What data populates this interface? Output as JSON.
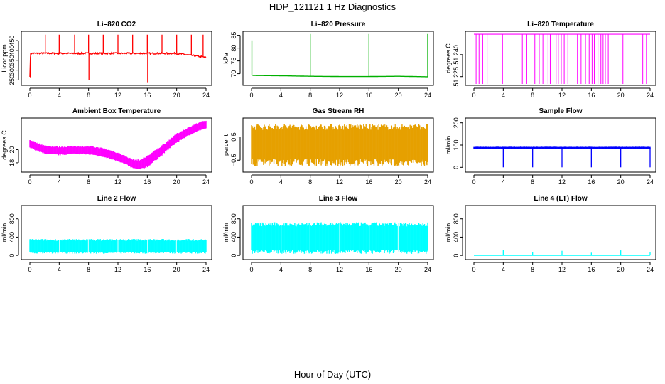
{
  "figure": {
    "title": "HDP_121121  1 Hz Diagnostics",
    "xlabel": "Hour of Day (UTC)"
  },
  "chart_data": [
    {
      "type": "line",
      "title": "Li–820 CO2",
      "ylabel": "Licor ppm",
      "color": "#ff0000",
      "xlim": [
        0,
        24
      ],
      "ylim": [
        230,
        490
      ],
      "yticks": [
        250,
        300,
        350,
        400,
        450
      ],
      "xticks": [
        0,
        4,
        8,
        12,
        16,
        20,
        24
      ],
      "xtick_labels": [
        "0",
        "4",
        "8",
        "12",
        "16",
        "20",
        "24"
      ],
      "baseline": 385,
      "noise": 8,
      "series": {
        "x": [
          0,
          0.1,
          2,
          4,
          8,
          12,
          16,
          20,
          24
        ],
        "y": [
          270,
          385,
          385,
          385,
          385,
          385,
          385,
          385,
          365
        ]
      },
      "spikes": [
        {
          "x": 0.1,
          "y": 260
        },
        {
          "x": 2.1,
          "y": 480
        },
        {
          "x": 4.0,
          "y": 480
        },
        {
          "x": 6.1,
          "y": 480
        },
        {
          "x": 8.0,
          "y": 480
        },
        {
          "x": 8.05,
          "y": 250
        },
        {
          "x": 10.0,
          "y": 480
        },
        {
          "x": 12.0,
          "y": 480
        },
        {
          "x": 14.0,
          "y": 480
        },
        {
          "x": 16.0,
          "y": 480
        },
        {
          "x": 16.05,
          "y": 235
        },
        {
          "x": 18.0,
          "y": 480
        },
        {
          "x": 20.0,
          "y": 480
        },
        {
          "x": 22.0,
          "y": 480
        },
        {
          "x": 23.6,
          "y": 480
        }
      ]
    },
    {
      "type": "line",
      "title": "Li–820 Pressure",
      "ylabel": "kPa",
      "color": "#00b000",
      "xlim": [
        0,
        24
      ],
      "ylim": [
        66,
        86
      ],
      "yticks": [
        70,
        75,
        80,
        85
      ],
      "xticks": [
        0,
        4,
        8,
        12,
        16,
        20,
        24
      ],
      "xtick_labels": [
        "0",
        "4",
        "8",
        "12",
        "16",
        "20",
        "24"
      ],
      "series": {
        "x": [
          0,
          0.3,
          4,
          8,
          12,
          16,
          20,
          24
        ],
        "y": [
          69.5,
          69.3,
          69.2,
          69.0,
          68.9,
          68.9,
          69.0,
          68.8
        ]
      },
      "spikes": [
        {
          "x": 0.05,
          "y": 83
        },
        {
          "x": 8.0,
          "y": 85.5
        },
        {
          "x": 16.0,
          "y": 85.5
        },
        {
          "x": 24.0,
          "y": 85.5
        }
      ]
    },
    {
      "type": "bar",
      "title": "Li–820 Temperature",
      "ylabel": "degrees C",
      "color": "#ff00ff",
      "xlim": [
        0,
        24
      ],
      "ylim": [
        51.22,
        51.255
      ],
      "yticks": [
        51.225,
        51.24
      ],
      "ytick_labels": [
        "51.225",
        "51.240"
      ],
      "xticks": [
        0,
        4,
        8,
        12,
        16,
        20,
        24
      ],
      "xtick_labels": [
        "0",
        "4",
        "8",
        "12",
        "16",
        "20",
        "24"
      ],
      "level_high": 51.254,
      "level_low": 51.22,
      "drops": [
        0.3,
        0.7,
        1.2,
        1.8,
        3.9,
        6.6,
        7.2,
        8.3,
        8.9,
        9.4,
        10.1,
        10.4,
        11.2,
        11.5,
        11.9,
        12.3,
        12.8,
        13.5,
        14.1,
        14.6,
        15.2,
        15.7,
        16.1,
        16.4,
        16.9,
        17.3,
        17.6,
        17.9,
        18.3,
        20.3,
        23.0,
        23.5
      ]
    },
    {
      "type": "area",
      "title": "Ambient Box Temperature",
      "ylabel": "degrees C",
      "color": "#ff00ff",
      "xlim": [
        0,
        24
      ],
      "ylim": [
        16.8,
        24.6
      ],
      "yticks": [
        18,
        20
      ],
      "ytick_labels": [
        "18",
        "20"
      ],
      "xticks": [
        0,
        4,
        8,
        12,
        16,
        20,
        24
      ],
      "xtick_labels": [
        "0",
        "4",
        "8",
        "12",
        "16",
        "20",
        "24"
      ],
      "series": {
        "x": [
          0,
          2,
          4,
          6,
          8,
          10,
          12,
          13,
          14,
          15,
          16,
          17,
          18,
          19,
          20,
          21,
          22,
          23,
          24
        ],
        "upper": [
          21.5,
          20.6,
          20.4,
          20.5,
          20.5,
          20.2,
          19.5,
          19.0,
          18.5,
          18.4,
          19.0,
          19.8,
          20.6,
          21.5,
          22.4,
          23.0,
          23.6,
          24.1,
          24.4
        ],
        "lower": [
          20.3,
          19.4,
          19.2,
          19.4,
          19.3,
          18.9,
          18.3,
          17.8,
          17.2,
          17.0,
          17.4,
          18.3,
          19.2,
          20.2,
          21.1,
          21.8,
          22.4,
          22.9,
          23.2
        ]
      }
    },
    {
      "type": "area",
      "title": "Gas Stream RH",
      "ylabel": "percent",
      "color": "#e6a000",
      "xlim": [
        0,
        24
      ],
      "ylim": [
        -0.95,
        1.25
      ],
      "yticks": [
        -0.5,
        0.5
      ],
      "ytick_labels": [
        "−0.5",
        "0.5"
      ],
      "xticks": [
        0,
        4,
        8,
        12,
        16,
        20,
        24
      ],
      "xtick_labels": [
        "0",
        "4",
        "8",
        "12",
        "16",
        "20",
        "24"
      ],
      "series": {
        "x": [
          0,
          24
        ],
        "upper": [
          0.8,
          0.8
        ],
        "lower": [
          -0.45,
          -0.45
        ]
      },
      "spike_range": [
        -0.8,
        1.1
      ]
    },
    {
      "type": "line",
      "title": "Sample Flow",
      "ylabel": "ml/min",
      "color": "#0000ff",
      "xlim": [
        0,
        24
      ],
      "ylim": [
        -15,
        215
      ],
      "yticks": [
        0,
        100,
        200
      ],
      "ytick_labels": [
        "0",
        "100",
        "200"
      ],
      "xticks": [
        0,
        4,
        8,
        12,
        16,
        20,
        24
      ],
      "xtick_labels": [
        "0",
        "4",
        "8",
        "12",
        "16",
        "20",
        "24"
      ],
      "series": {
        "x": [
          0,
          24
        ],
        "upper": [
          92,
          92
        ],
        "lower": [
          82,
          82
        ]
      },
      "spikes": [
        {
          "x": 4.0,
          "y": 0
        },
        {
          "x": 8.0,
          "y": 0
        },
        {
          "x": 12.0,
          "y": 0
        },
        {
          "x": 16.0,
          "y": 0
        },
        {
          "x": 20.0,
          "y": 0
        },
        {
          "x": 24.0,
          "y": 0
        }
      ]
    },
    {
      "type": "area",
      "title": "Line 2 Flow",
      "ylabel": "ml/min",
      "color": "#00ffff",
      "xlim": [
        0,
        24
      ],
      "ylim": [
        -60,
        1060
      ],
      "yticks": [
        0,
        400,
        800
      ],
      "ytick_labels": [
        "0",
        "400",
        "800"
      ],
      "xticks": [
        0,
        4,
        8,
        12,
        16,
        20,
        24
      ],
      "xtick_labels": [
        "0",
        "4",
        "8",
        "12",
        "16",
        "20",
        "24"
      ],
      "series": {
        "x": [
          0,
          24
        ],
        "upper": [
          340,
          340
        ],
        "lower": [
          60,
          60
        ]
      },
      "gaps": [
        4,
        8,
        12,
        16,
        20
      ]
    },
    {
      "type": "area",
      "title": "Line 3 Flow",
      "ylabel": "ml/min",
      "color": "#00ffff",
      "xlim": [
        0,
        24
      ],
      "ylim": [
        -60,
        1060
      ],
      "yticks": [
        0,
        400,
        800
      ],
      "ytick_labels": [
        "0",
        "400",
        "800"
      ],
      "xticks": [
        0,
        4,
        8,
        12,
        16,
        20,
        24
      ],
      "xtick_labels": [
        "0",
        "4",
        "8",
        "12",
        "16",
        "20",
        "24"
      ],
      "series": {
        "x": [
          0,
          24
        ],
        "upper": [
          680,
          680
        ],
        "lower": [
          80,
          80
        ]
      },
      "gaps": [
        4,
        8,
        12,
        16,
        20
      ]
    },
    {
      "type": "line",
      "title": "Line 4 (LT) Flow",
      "ylabel": "ml/min",
      "color": "#00ffff",
      "xlim": [
        0,
        24
      ],
      "ylim": [
        -60,
        1060
      ],
      "yticks": [
        0,
        400,
        800
      ],
      "ytick_labels": [
        "0",
        "400",
        "800"
      ],
      "xticks": [
        0,
        4,
        8,
        12,
        16,
        20,
        24
      ],
      "xtick_labels": [
        "0",
        "4",
        "8",
        "12",
        "16",
        "20",
        "24"
      ],
      "series": {
        "x": [
          0,
          24
        ],
        "y": [
          0,
          0
        ]
      },
      "spikes": [
        {
          "x": 4.0,
          "y": 120
        },
        {
          "x": 8.0,
          "y": 70
        },
        {
          "x": 12.0,
          "y": 100
        },
        {
          "x": 16.0,
          "y": 60
        },
        {
          "x": 20.0,
          "y": 110
        },
        {
          "x": 24.0,
          "y": 70
        }
      ]
    }
  ]
}
